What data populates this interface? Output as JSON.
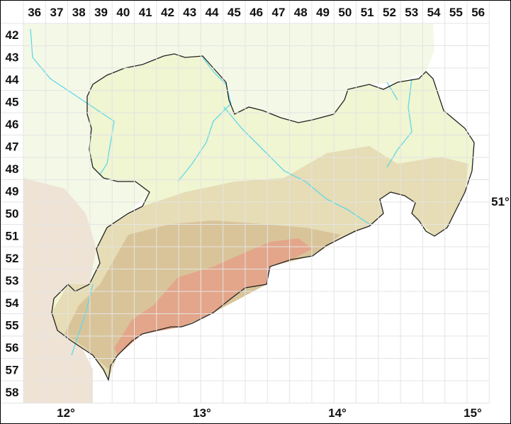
{
  "grid": {
    "columns": [
      "36",
      "37",
      "38",
      "39",
      "40",
      "41",
      "42",
      "43",
      "44",
      "45",
      "46",
      "47",
      "48",
      "49",
      "50",
      "51",
      "52",
      "53",
      "54",
      "55",
      "56"
    ],
    "rows": [
      "42",
      "43",
      "44",
      "45",
      "46",
      "47",
      "48",
      "49",
      "50",
      "51",
      "52",
      "53",
      "54",
      "55",
      "56",
      "57",
      "58"
    ]
  },
  "longitude_labels": [
    "12°",
    "13°",
    "14°",
    "15°"
  ],
  "latitude_labels": [
    "51°"
  ],
  "colors": {
    "lowland": "#f0f5d2",
    "hills": "#e6dcb5",
    "uplands": "#d9c49a",
    "mountains": "#e3a68a",
    "outside_north": "#f4f8e6",
    "outside_southwest": "#efe3d6",
    "rivers": "#5fd8e8",
    "border": "#222222",
    "grid": "#e4e4e4"
  }
}
